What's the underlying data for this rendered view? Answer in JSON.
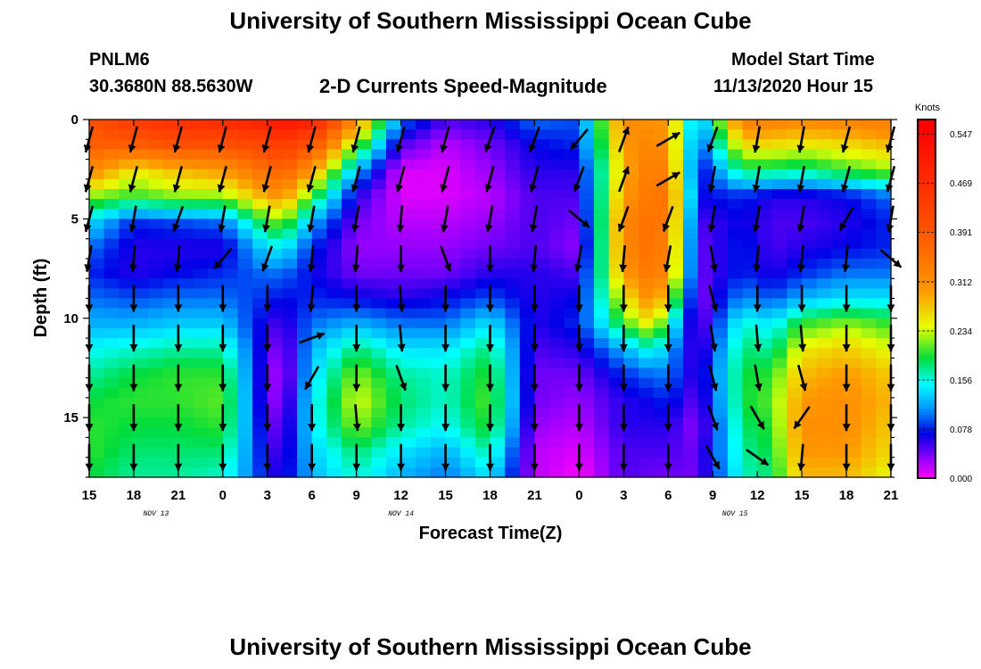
{
  "header": {
    "title": "University of Southern Mississippi Ocean Cube",
    "station": "PNLM6",
    "coords": "30.3680N 88.5630W",
    "subtitle": "2-D Currents Speed-Magnitude",
    "model_start_label": "Model Start Time",
    "model_start_value": "11/13/2020 Hour 15"
  },
  "footer": {
    "title": "University of Southern Mississippi Ocean Cube"
  },
  "chart_data": {
    "type": "heatmap",
    "title": "2-D Currents Speed-Magnitude",
    "xlabel": "Forecast Time(Z)",
    "ylabel": "Depth (ft)",
    "x_ticks": [
      "15",
      "18",
      "21",
      "0",
      "3",
      "6",
      "9",
      "12",
      "15",
      "18",
      "21",
      "0",
      "3",
      "6",
      "9",
      "12",
      "15",
      "18",
      "21"
    ],
    "date_labels": [
      {
        "text": "NOV 13",
        "tick_index": 1.5
      },
      {
        "text": "NOV 14",
        "tick_index": 7
      },
      {
        "text": "NOV 15",
        "tick_index": 14.5
      }
    ],
    "y_ticks": [
      0,
      5,
      10,
      15
    ],
    "ylim": [
      0,
      18
    ],
    "colorbar": {
      "label": "Knots",
      "ticks": [
        "0.547",
        "0.469",
        "0.391",
        "0.312",
        "0.234",
        "0.156",
        "0.078",
        "0.000"
      ],
      "range": [
        0,
        0.57
      ]
    },
    "depth_levels": [
      0,
      0.5,
      1,
      1.5,
      2,
      2.5,
      3,
      3.5,
      4,
      4.5,
      5,
      5.5,
      6,
      6.5,
      7,
      7.5,
      8,
      8.5,
      9,
      9.5,
      10,
      10.5,
      11,
      11.5,
      12,
      12.5,
      13,
      13.5,
      14,
      14.5,
      15,
      15.5,
      16,
      16.5,
      17,
      17.5,
      18
    ],
    "time_keys": [
      0,
      3,
      6,
      9,
      12,
      13,
      15,
      18,
      21,
      24,
      27,
      30,
      33,
      36,
      38,
      39,
      41,
      44,
      46,
      48,
      51,
      54
    ],
    "speed_profiles": [
      [
        0.4,
        0.38,
        0.32,
        0.22,
        0.14,
        0.1,
        0.08,
        0.1,
        0.12,
        0.15,
        0.17,
        0.19,
        0.2,
        0.2,
        0.19
      ],
      [
        0.45,
        0.38,
        0.25,
        0.2,
        0.08,
        0.06,
        0.06,
        0.09,
        0.12,
        0.16,
        0.19,
        0.2,
        0.19,
        0.18,
        0.17
      ],
      [
        0.47,
        0.4,
        0.28,
        0.22,
        0.09,
        0.06,
        0.07,
        0.1,
        0.13,
        0.17,
        0.2,
        0.2,
        0.19,
        0.18,
        0.17
      ],
      [
        0.48,
        0.4,
        0.3,
        0.22,
        0.1,
        0.06,
        0.08,
        0.1,
        0.13,
        0.17,
        0.2,
        0.21,
        0.2,
        0.18,
        0.16
      ],
      [
        0.5,
        0.42,
        0.36,
        0.29,
        0.2,
        0.14,
        0.1,
        0.08,
        0.06,
        0.05,
        0.04,
        0.04,
        0.05,
        0.06,
        0.07
      ],
      [
        0.53,
        0.44,
        0.38,
        0.31,
        0.22,
        0.15,
        0.1,
        0.07,
        0.05,
        0.03,
        0.02,
        0.03,
        0.04,
        0.05,
        0.06
      ],
      [
        0.5,
        0.4,
        0.3,
        0.2,
        0.12,
        0.08,
        0.07,
        0.08,
        0.1,
        0.12,
        0.13,
        0.14,
        0.14,
        0.13,
        0.12
      ],
      [
        0.32,
        0.22,
        0.12,
        0.06,
        0.04,
        0.03,
        0.04,
        0.07,
        0.12,
        0.18,
        0.22,
        0.24,
        0.22,
        0.18,
        0.16
      ],
      [
        0.1,
        0.05,
        0.01,
        0.01,
        0.02,
        0.03,
        0.04,
        0.06,
        0.1,
        0.14,
        0.17,
        0.18,
        0.17,
        0.14,
        0.12
      ],
      [
        0.05,
        0.02,
        0.01,
        0.01,
        0.02,
        0.03,
        0.04,
        0.07,
        0.1,
        0.14,
        0.16,
        0.16,
        0.15,
        0.12,
        0.1
      ],
      [
        0.06,
        0.04,
        0.03,
        0.02,
        0.03,
        0.04,
        0.06,
        0.09,
        0.14,
        0.18,
        0.2,
        0.21,
        0.2,
        0.17,
        0.14
      ],
      [
        0.1,
        0.07,
        0.06,
        0.05,
        0.05,
        0.05,
        0.06,
        0.06,
        0.06,
        0.05,
        0.04,
        0.04,
        0.03,
        0.02,
        0.02
      ],
      [
        0.09,
        0.08,
        0.06,
        0.05,
        0.04,
        0.03,
        0.05,
        0.07,
        0.08,
        0.06,
        0.04,
        0.03,
        0.02,
        0.01,
        0.0
      ],
      [
        0.32,
        0.3,
        0.28,
        0.3,
        0.32,
        0.32,
        0.3,
        0.25,
        0.2,
        0.12,
        0.08,
        0.06,
        0.06,
        0.05,
        0.05
      ],
      [
        0.3,
        0.33,
        0.35,
        0.35,
        0.36,
        0.36,
        0.35,
        0.32,
        0.26,
        0.16,
        0.1,
        0.07,
        0.06,
        0.05,
        0.04
      ],
      [
        0.3,
        0.3,
        0.32,
        0.34,
        0.33,
        0.32,
        0.31,
        0.25,
        0.17,
        0.12,
        0.1,
        0.08,
        0.06,
        0.05,
        0.04
      ],
      [
        0.1,
        0.08,
        0.06,
        0.07,
        0.05,
        0.04,
        0.04,
        0.03,
        0.03,
        0.04,
        0.05,
        0.04,
        0.03,
        0.04,
        0.04
      ],
      [
        0.34,
        0.26,
        0.18,
        0.08,
        0.07,
        0.08,
        0.08,
        0.11,
        0.16,
        0.18,
        0.19,
        0.19,
        0.18,
        0.17,
        0.16
      ],
      [
        0.33,
        0.26,
        0.18,
        0.06,
        0.05,
        0.05,
        0.06,
        0.09,
        0.14,
        0.17,
        0.2,
        0.21,
        0.2,
        0.19,
        0.18
      ],
      [
        0.32,
        0.25,
        0.17,
        0.06,
        0.05,
        0.06,
        0.08,
        0.12,
        0.2,
        0.25,
        0.28,
        0.3,
        0.31,
        0.3,
        0.28
      ],
      [
        0.33,
        0.26,
        0.2,
        0.07,
        0.06,
        0.07,
        0.1,
        0.14,
        0.22,
        0.27,
        0.3,
        0.31,
        0.31,
        0.3,
        0.28
      ],
      [
        0.34,
        0.28,
        0.22,
        0.1,
        0.08,
        0.08,
        0.1,
        0.14,
        0.2,
        0.24,
        0.27,
        0.28,
        0.27,
        0.26,
        0.24
      ]
    ],
    "arrow_times": [
      0,
      3,
      6,
      9,
      12,
      15,
      18,
      21,
      24,
      27,
      30,
      33,
      36,
      39,
      42,
      45,
      48,
      51,
      54
    ],
    "arrow_depths": [
      1,
      3,
      5,
      7,
      9,
      11,
      13,
      15,
      17
    ],
    "arrow_directions_deg": [
      [
        195,
        195,
        195,
        190,
        180,
        180,
        180,
        180,
        180
      ],
      [
        195,
        195,
        190,
        185,
        180,
        180,
        180,
        180,
        180
      ],
      [
        195,
        195,
        200,
        185,
        180,
        180,
        180,
        180,
        180
      ],
      [
        195,
        195,
        190,
        220,
        180,
        180,
        180,
        180,
        180
      ],
      [
        195,
        195,
        190,
        200,
        180,
        180,
        180,
        180,
        180
      ],
      [
        195,
        195,
        190,
        185,
        185,
        70,
        210,
        180,
        180
      ],
      [
        195,
        195,
        190,
        185,
        180,
        180,
        180,
        175,
        180
      ],
      [
        195,
        195,
        185,
        180,
        175,
        175,
        160,
        180,
        180
      ],
      [
        195,
        195,
        190,
        160,
        180,
        180,
        180,
        180,
        180
      ],
      [
        200,
        195,
        190,
        180,
        180,
        180,
        180,
        180,
        180
      ],
      [
        200,
        195,
        190,
        185,
        180,
        180,
        180,
        180,
        180
      ],
      [
        220,
        200,
        130,
        190,
        180,
        180,
        180,
        180,
        180
      ],
      [
        20,
        20,
        200,
        185,
        180,
        180,
        180,
        180,
        180
      ],
      [
        60,
        60,
        200,
        190,
        180,
        180,
        180,
        180,
        180
      ],
      [
        200,
        190,
        190,
        170,
        165,
        170,
        165,
        160,
        150
      ],
      [
        190,
        190,
        190,
        185,
        180,
        175,
        170,
        150,
        125
      ],
      [
        190,
        190,
        190,
        185,
        180,
        175,
        165,
        215,
        185
      ],
      [
        195,
        195,
        210,
        185,
        180,
        180,
        180,
        180,
        180
      ],
      [
        195,
        195,
        190,
        130,
        180,
        180,
        180,
        180,
        180
      ]
    ]
  }
}
